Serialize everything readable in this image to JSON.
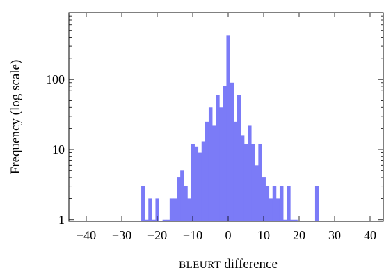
{
  "chart_data": {
    "type": "bar",
    "title": "",
    "xlabel": "BLEURT difference",
    "ylabel": "Frequency (log scale)",
    "xlim": [
      -45,
      42
    ],
    "ylim": [
      0.95,
      900
    ],
    "yscale": "log",
    "grid": false,
    "legend": "none",
    "bar_color": "#7b7bf7",
    "x_ticks": [
      -40,
      -30,
      -20,
      -10,
      0,
      10,
      20,
      30,
      40
    ],
    "x_tick_labels": [
      "−40",
      "−30",
      "−20",
      "−10",
      "0",
      "10",
      "20",
      "30",
      "40"
    ],
    "y_ticks": [
      1,
      10,
      100
    ],
    "y_tick_labels": [
      "1",
      "10",
      "100"
    ],
    "bin_width": 1,
    "bins": [
      {
        "x": -24,
        "y": 3
      },
      {
        "x": -23,
        "y": 1
      },
      {
        "x": -22,
        "y": 2
      },
      {
        "x": -21,
        "y": 1
      },
      {
        "x": -20,
        "y": 2
      },
      {
        "x": -18,
        "y": 1
      },
      {
        "x": -17,
        "y": 1
      },
      {
        "x": -16,
        "y": 2
      },
      {
        "x": -15,
        "y": 2
      },
      {
        "x": -14,
        "y": 4
      },
      {
        "x": -13,
        "y": 5
      },
      {
        "x": -12,
        "y": 3
      },
      {
        "x": -11,
        "y": 2
      },
      {
        "x": -10,
        "y": 12
      },
      {
        "x": -9,
        "y": 11
      },
      {
        "x": -8,
        "y": 9
      },
      {
        "x": -7,
        "y": 13
      },
      {
        "x": -6,
        "y": 25
      },
      {
        "x": -5,
        "y": 40
      },
      {
        "x": -4,
        "y": 22
      },
      {
        "x": -3,
        "y": 60
      },
      {
        "x": -2,
        "y": 40
      },
      {
        "x": -1,
        "y": 80
      },
      {
        "x": 0,
        "y": 420
      },
      {
        "x": 1,
        "y": 90
      },
      {
        "x": 2,
        "y": 25
      },
      {
        "x": 3,
        "y": 60
      },
      {
        "x": 4,
        "y": 16
      },
      {
        "x": 5,
        "y": 12
      },
      {
        "x": 6,
        "y": 22
      },
      {
        "x": 7,
        "y": 12
      },
      {
        "x": 8,
        "y": 6
      },
      {
        "x": 9,
        "y": 12
      },
      {
        "x": 10,
        "y": 4
      },
      {
        "x": 11,
        "y": 3
      },
      {
        "x": 12,
        "y": 2
      },
      {
        "x": 13,
        "y": 3
      },
      {
        "x": 14,
        "y": 2
      },
      {
        "x": 15,
        "y": 3
      },
      {
        "x": 16,
        "y": 1
      },
      {
        "x": 17,
        "y": 3
      },
      {
        "x": 18,
        "y": 1
      },
      {
        "x": 19,
        "y": 1
      },
      {
        "x": 25,
        "y": 3
      }
    ]
  }
}
